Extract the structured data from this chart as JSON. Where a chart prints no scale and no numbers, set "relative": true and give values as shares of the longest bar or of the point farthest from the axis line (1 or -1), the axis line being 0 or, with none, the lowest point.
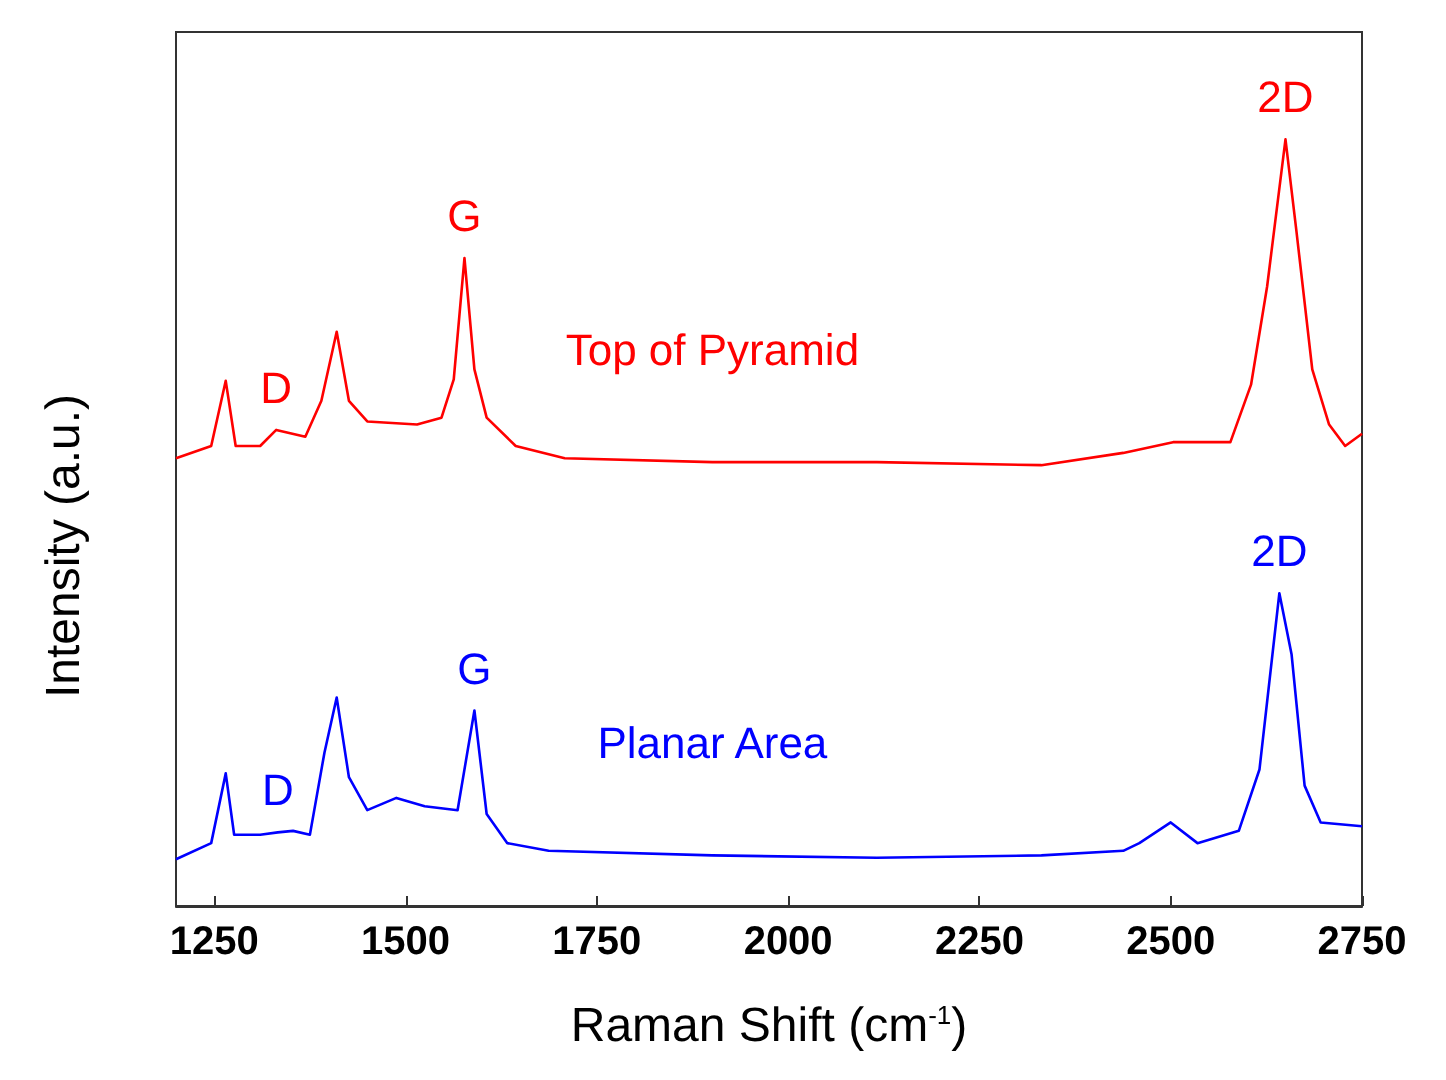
{
  "chart_data": {
    "type": "line",
    "relative": true,
    "xlabel": "Raman Shift (cm$^{-1}$)",
    "ylabel": "Intensity (a.u.)",
    "xlim": [
      1200,
      2750
    ],
    "xticks": [
      1250,
      1500,
      1750,
      2000,
      2250,
      2500,
      2750
    ],
    "grid": false,
    "marker": "none",
    "line_style": "solid",
    "series": [
      {
        "name": "Top of Pyramid",
        "color": "#ff0000",
        "x": [
          1200,
          1246,
          1265,
          1278,
          1310,
          1331,
          1369,
          1390,
          1410,
          1426,
          1450,
          1515,
          1547,
          1563,
          1577,
          1590,
          1606,
          1644,
          1708,
          1901,
          2116,
          2331,
          2438,
          2503,
          2578,
          2605,
          2626,
          2650,
          2664,
          2685,
          2707,
          2728,
          2750
        ],
        "values": [
          0.584,
          0.6,
          0.685,
          0.6,
          0.6,
          0.621,
          0.612,
          0.659,
          0.749,
          0.659,
          0.632,
          0.628,
          0.637,
          0.687,
          0.845,
          0.7,
          0.637,
          0.6,
          0.584,
          0.579,
          0.579,
          0.575,
          0.591,
          0.605,
          0.605,
          0.68,
          0.808,
          1.0,
          0.883,
          0.7,
          0.628,
          0.6,
          0.616
        ]
      },
      {
        "name": "Planar Area",
        "color": "#0000ff",
        "x": [
          1200,
          1246,
          1265,
          1276,
          1310,
          1333,
          1353,
          1375,
          1394,
          1410,
          1426,
          1450,
          1488,
          1525,
          1568,
          1590,
          1606,
          1633,
          1687,
          1901,
          2116,
          2331,
          2438,
          2459,
          2500,
          2535,
          2589,
          2616,
          2642,
          2658,
          2675,
          2696,
          2750
        ],
        "values": [
          0.061,
          0.082,
          0.173,
          0.093,
          0.093,
          0.096,
          0.098,
          0.093,
          0.2,
          0.272,
          0.168,
          0.125,
          0.141,
          0.13,
          0.125,
          0.255,
          0.12,
          0.082,
          0.072,
          0.066,
          0.063,
          0.066,
          0.072,
          0.082,
          0.109,
          0.082,
          0.098,
          0.178,
          0.408,
          0.328,
          0.157,
          0.109,
          0.104
        ]
      }
    ],
    "annotations": [
      {
        "text": "D",
        "x": 1331,
        "y": 0.621
      },
      {
        "text": "G",
        "x": 1577,
        "y": 0.845
      },
      {
        "text": "2D",
        "x": 2650,
        "y": 1.0
      },
      {
        "text": "D",
        "x": 1333,
        "y": 0.096
      },
      {
        "text": "G",
        "x": 1590,
        "y": 0.255
      },
      {
        "text": "2D",
        "x": 2642,
        "y": 0.408
      }
    ]
  }
}
